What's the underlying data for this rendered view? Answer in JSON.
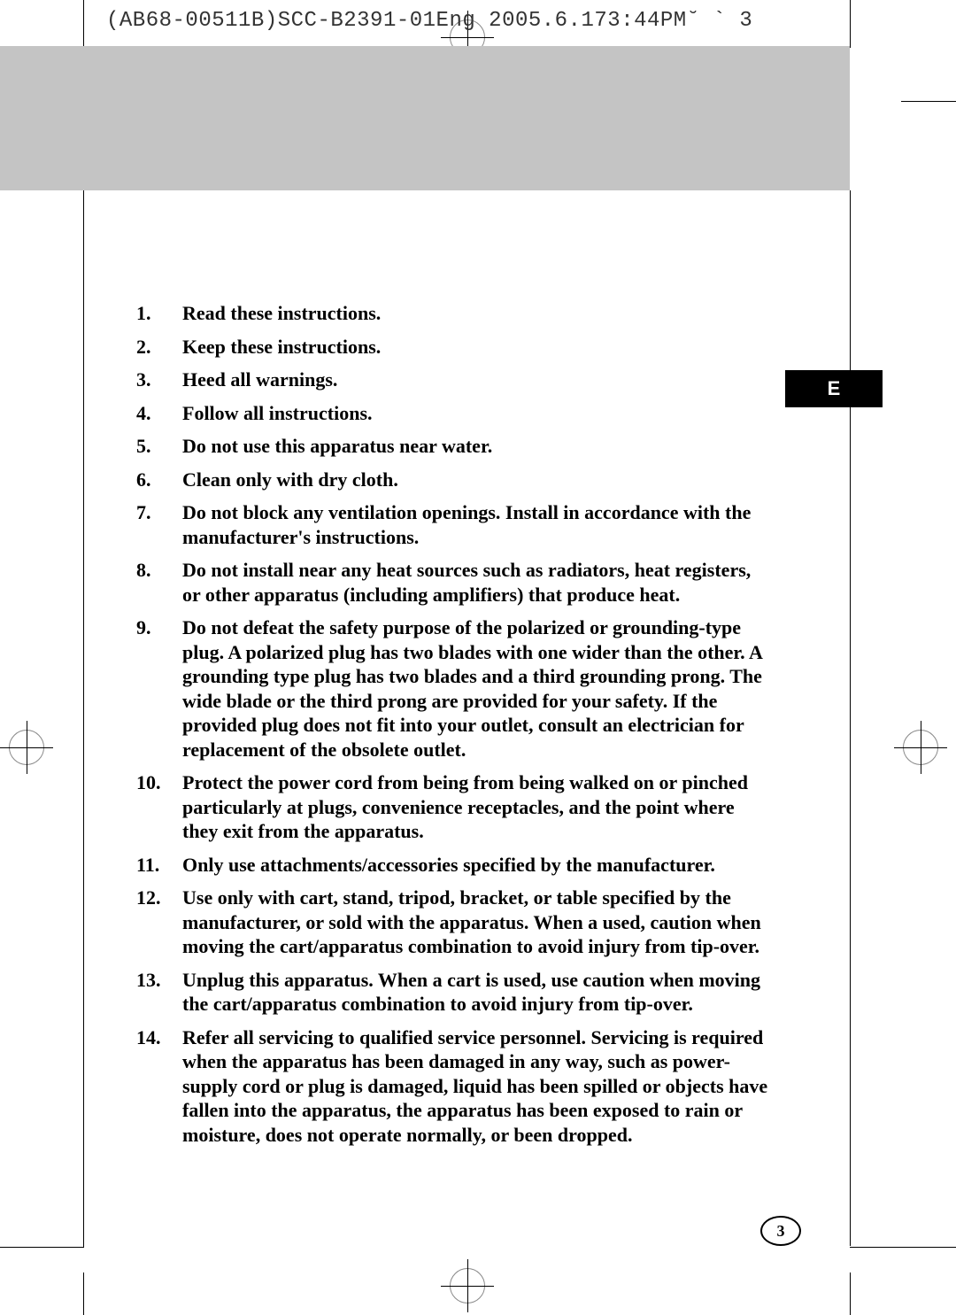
{
  "header": {
    "text": "(AB68-00511B)SCC-B2391-01Eng 2005.6.173:44PM˘  ` 3"
  },
  "tab": {
    "label": "E"
  },
  "instructions": [
    {
      "num": "1.",
      "text": "Read these instructions."
    },
    {
      "num": "2.",
      "text": "Keep these instructions."
    },
    {
      "num": "3.",
      "text": "Heed all warnings."
    },
    {
      "num": "4.",
      "text": "Follow all instructions."
    },
    {
      "num": "5.",
      "text": "Do not use this apparatus near water."
    },
    {
      "num": "6.",
      "text": "Clean only with dry cloth."
    },
    {
      "num": "7.",
      "text": "Do not block any ventilation openings. Install in accordance with the manufacturer's instructions."
    },
    {
      "num": "8.",
      "text": "Do not install near any heat sources such as radiators, heat registers, or other apparatus (including amplifiers) that produce heat."
    },
    {
      "num": "9.",
      "text": "Do not defeat the safety purpose of the polarized or grounding-type plug. A polarized plug has two blades with one wider than the other. A grounding type plug has two blades and a third grounding prong. The wide blade or the third prong are provided for your safety. If the provided plug does not fit into your outlet, consult an electrician for replacement of the obsolete outlet."
    },
    {
      "num": "10.",
      "text": "Protect the power cord from being from being walked on or pinched particularly at plugs, convenience receptacles, and the point where they exit from the apparatus."
    },
    {
      "num": "11.",
      "text": "Only use attachments/accessories specified by the manufacturer."
    },
    {
      "num": "12.",
      "text": "Use only with cart, stand, tripod, bracket, or table specified by the manufacturer, or sold with the apparatus. When a used, caution when moving the cart/apparatus combination to avoid injury from tip-over."
    },
    {
      "num": "13.",
      "text": "Unplug this apparatus. When a cart is used, use caution when moving the cart/apparatus combination to avoid injury from tip-over."
    },
    {
      "num": "14.",
      "text": "Refer all servicing to qualified service personnel. Servicing is required when the apparatus has been damaged in any way, such as power-supply cord or plug is damaged, liquid has been spilled or objects have fallen into the apparatus, the apparatus has been exposed to rain or moisture, does not operate normally, or been dropped."
    }
  ],
  "page_number": "3",
  "colors": {
    "banner_grey": "#c4c4c4",
    "black": "#000000",
    "white": "#ffffff"
  }
}
